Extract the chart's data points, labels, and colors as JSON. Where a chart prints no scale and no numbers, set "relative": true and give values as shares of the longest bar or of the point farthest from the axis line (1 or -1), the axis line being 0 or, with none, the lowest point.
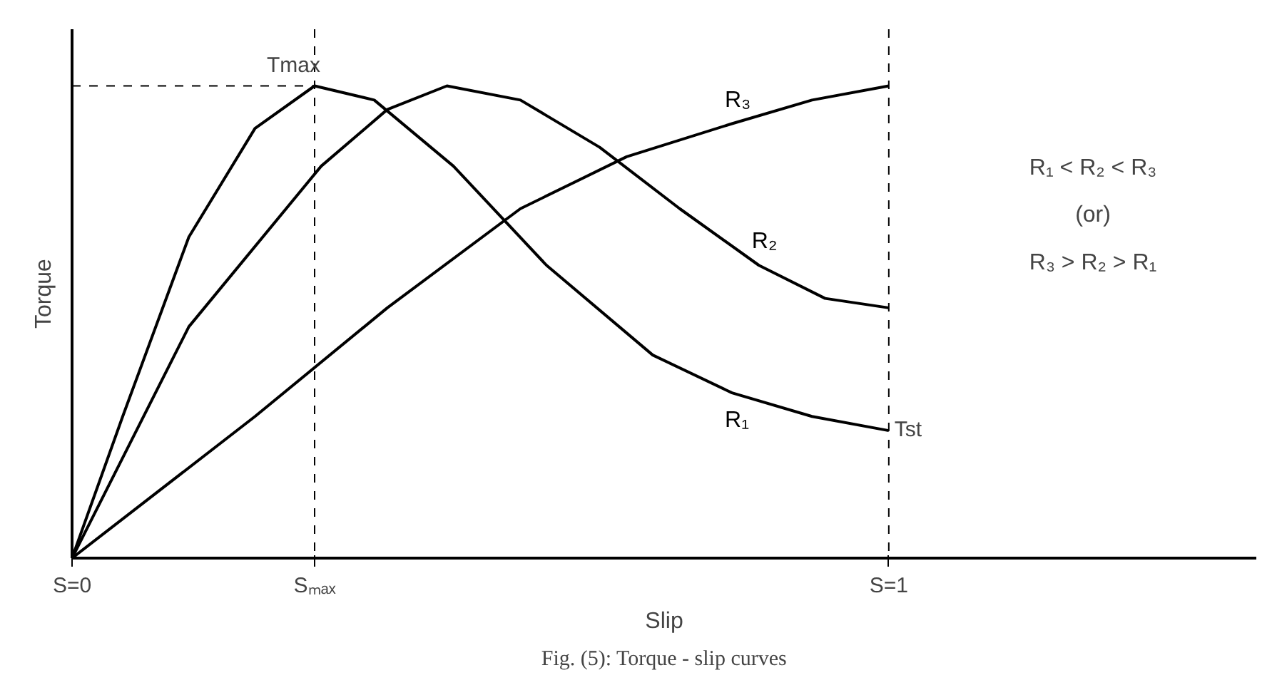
{
  "chart_data": {
    "type": "line",
    "relative": true,
    "xlabel": "Slip",
    "ylabel": "Torque",
    "grid": false,
    "legend": false,
    "marker": "none",
    "line_style": "solid",
    "xlim": [
      0,
      1.45
    ],
    "xticks": [
      {
        "value": 0,
        "label": "S=0"
      },
      {
        "value": 0.297,
        "label": "Sₘₐₓ"
      },
      {
        "value": 1,
        "label": "S=1"
      }
    ],
    "series": [
      {
        "name": "R₁",
        "color": "#000000",
        "x": [
          0,
          0.062,
          0.143,
          0.224,
          0.297,
          0.37,
          0.467,
          0.581,
          0.711,
          0.808,
          0.906,
          1.0
        ],
        "values": [
          0,
          0.3,
          0.68,
          0.91,
          1.0,
          0.97,
          0.83,
          0.62,
          0.43,
          0.35,
          0.3,
          0.27
        ]
      },
      {
        "name": "R₂",
        "color": "#000000",
        "x": [
          0,
          0.143,
          0.305,
          0.386,
          0.459,
          0.549,
          0.646,
          0.744,
          0.841,
          0.922,
          1.0
        ],
        "values": [
          0,
          0.49,
          0.83,
          0.95,
          1.0,
          0.97,
          0.87,
          0.74,
          0.62,
          0.55,
          0.53
        ]
      },
      {
        "name": "R₃",
        "color": "#000000",
        "x": [
          0,
          0.224,
          0.386,
          0.549,
          0.679,
          0.808,
          0.906,
          1.0
        ],
        "values": [
          0,
          0.3,
          0.53,
          0.74,
          0.85,
          0.92,
          0.97,
          1.0
        ]
      }
    ],
    "ref_lines": [
      {
        "axis": "x",
        "value": 0.297,
        "line_style": "dashed"
      },
      {
        "axis": "x",
        "value": 1,
        "line_style": "dashed"
      },
      {
        "axis": "y",
        "value": 1,
        "line_style": "dashed"
      }
    ],
    "annotations": [
      {
        "text": "Tmax",
        "x": 0.297,
        "y": 1
      },
      {
        "text": "Tst",
        "x": 1,
        "y": 0.27
      },
      "R₁ < R₂ < R₃",
      "(or)",
      "R₃ > R₂ > R₁",
      "Fig. (5): Torque - slip curves"
    ]
  }
}
